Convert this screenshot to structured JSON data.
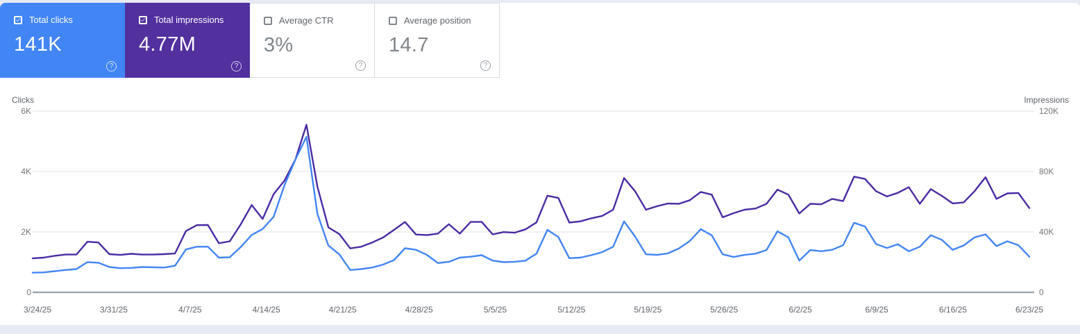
{
  "cards": [
    {
      "label": "Total clicks",
      "value": "141K",
      "checked": true,
      "color": "#4285f4",
      "text_color": "#ffffff"
    },
    {
      "label": "Total impressions",
      "value": "4.77M",
      "checked": true,
      "color": "#52309e",
      "text_color": "#ffffff"
    },
    {
      "label": "Average CTR",
      "value": "3%",
      "checked": false,
      "color": "#ffffff"
    },
    {
      "label": "Average position",
      "value": "14.7",
      "checked": false,
      "color": "#ffffff"
    }
  ],
  "help_icon_glyph": "?",
  "chart_data": {
    "type": "line",
    "grid": "horizontal",
    "left_axis": {
      "title": "Clicks",
      "min": 0,
      "max": 6000,
      "tick_labels_top_to_bottom": [
        "6K",
        "4K",
        "2K",
        "0"
      ]
    },
    "right_axis": {
      "title": "Impressions",
      "min": 0,
      "max": 120000,
      "tick_labels_top_to_bottom": [
        "120K",
        "80K",
        "40K",
        "0"
      ]
    },
    "x_tick_labels": [
      "3/24/25",
      "3/31/25",
      "4/7/25",
      "4/14/25",
      "4/21/25",
      "4/28/25",
      "5/5/25",
      "5/12/25",
      "5/19/25",
      "5/26/25",
      "6/2/25",
      "6/9/25",
      "6/16/25",
      "6/23/25"
    ],
    "dates": [
      "3/24/25",
      "3/25/25",
      "3/26/25",
      "3/27/25",
      "3/28/25",
      "3/29/25",
      "3/30/25",
      "3/31/25",
      "4/1/25",
      "4/2/25",
      "4/3/25",
      "4/4/25",
      "4/5/25",
      "4/6/25",
      "4/7/25",
      "4/8/25",
      "4/9/25",
      "4/10/25",
      "4/11/25",
      "4/12/25",
      "4/13/25",
      "4/14/25",
      "4/15/25",
      "4/16/25",
      "4/17/25",
      "4/18/25",
      "4/19/25",
      "4/20/25",
      "4/21/25",
      "4/22/25",
      "4/23/25",
      "4/24/25",
      "4/25/25",
      "4/26/25",
      "4/27/25",
      "4/28/25",
      "4/29/25",
      "4/30/25",
      "5/1/25",
      "5/2/25",
      "5/3/25",
      "5/4/25",
      "5/5/25",
      "5/6/25",
      "5/7/25",
      "5/8/25",
      "5/9/25",
      "5/10/25",
      "5/11/25",
      "5/12/25",
      "5/13/25",
      "5/14/25",
      "5/15/25",
      "5/16/25",
      "5/17/25",
      "5/18/25",
      "5/19/25",
      "5/20/25",
      "5/21/25",
      "5/22/25",
      "5/23/25",
      "5/24/25",
      "5/25/25",
      "5/26/25",
      "5/27/25",
      "5/28/25",
      "5/29/25",
      "5/30/25",
      "5/31/25",
      "6/1/25",
      "6/2/25",
      "6/3/25",
      "6/4/25",
      "6/5/25",
      "6/6/25",
      "6/7/25",
      "6/8/25",
      "6/9/25",
      "6/10/25",
      "6/11/25",
      "6/12/25",
      "6/13/25",
      "6/14/25",
      "6/15/25",
      "6/16/25",
      "6/17/25",
      "6/18/25",
      "6/19/25",
      "6/20/25",
      "6/21/25",
      "6/22/25",
      "6/23/25"
    ],
    "series": [
      {
        "name": "Clicks",
        "axis": "left",
        "color": "#4285f4",
        "values": [
          650,
          660,
          700,
          740,
          770,
          1000,
          980,
          840,
          800,
          810,
          840,
          830,
          820,
          880,
          1420,
          1510,
          1510,
          1150,
          1160,
          1500,
          1900,
          2100,
          2500,
          3550,
          4400,
          5150,
          2600,
          1550,
          1260,
          740,
          770,
          820,
          920,
          1070,
          1460,
          1410,
          1240,
          970,
          1010,
          1150,
          1180,
          1230,
          1050,
          1000,
          1010,
          1050,
          1280,
          2070,
          1830,
          1130,
          1150,
          1230,
          1330,
          1510,
          2350,
          1850,
          1260,
          1240,
          1290,
          1450,
          1700,
          2090,
          1890,
          1260,
          1170,
          1240,
          1280,
          1400,
          2020,
          1820,
          1050,
          1400,
          1360,
          1410,
          1560,
          2300,
          2180,
          1600,
          1470,
          1590,
          1360,
          1510,
          1890,
          1740,
          1410,
          1550,
          1820,
          1920,
          1530,
          1690,
          1560,
          1180
        ]
      },
      {
        "name": "Impressions",
        "axis": "right",
        "color": "#4a2ba3",
        "values": [
          22500,
          23000,
          24200,
          25000,
          25000,
          33500,
          33000,
          25300,
          24800,
          25500,
          25000,
          25000,
          25300,
          25700,
          40600,
          44500,
          44600,
          32500,
          33800,
          45000,
          57800,
          48600,
          65000,
          74000,
          88000,
          111000,
          70000,
          43000,
          38600,
          29100,
          30200,
          33000,
          36300,
          41400,
          46600,
          38300,
          37900,
          38900,
          45100,
          38900,
          46600,
          46600,
          38400,
          39900,
          39500,
          41700,
          46300,
          64000,
          62500,
          46200,
          47000,
          49000,
          50600,
          54700,
          75700,
          67000,
          54700,
          57000,
          58800,
          58600,
          61000,
          66500,
          64700,
          49700,
          52400,
          54700,
          55500,
          58600,
          68000,
          64700,
          52200,
          58600,
          58300,
          61900,
          60400,
          76600,
          75100,
          67000,
          63500,
          65900,
          69600,
          58600,
          68300,
          63900,
          58900,
          59500,
          67000,
          76200,
          61900,
          65500,
          65800,
          55800
        ]
      }
    ]
  }
}
